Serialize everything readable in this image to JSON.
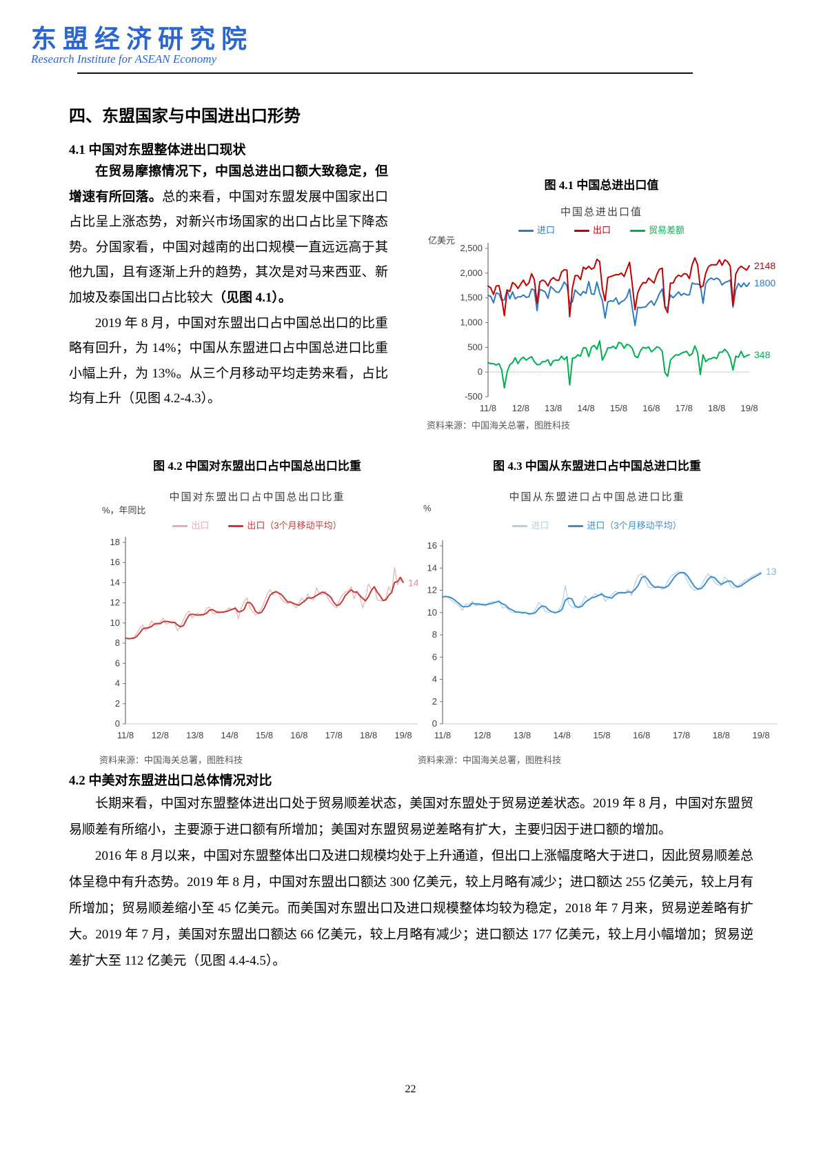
{
  "header": {
    "logo": "东盟经济研究院",
    "subtitle": "Research Institute for ASEAN Economy"
  },
  "section": {
    "h1": "四、东盟国家与中国进出口形势",
    "h2_1": "4.1 中国对东盟整体进出口现状",
    "h2_2": "4.2 中美对东盟进出口总体情况对比"
  },
  "paragraphs": {
    "p1_bold": "在贸易摩擦情况下，中国总进出口额大致稳定，但增速有所回落。",
    "p1_normal": "总的来看，中国对东盟发展中国家出口占比呈上涨态势，对新兴市场国家的出口占比呈下降态势。分国家看，中国对越南的出口规模一直远远高于其他九国，且有逐渐上升的趋势，其次是对马来西亚、新加坡及泰国出口占比较大",
    "p1_bold2": "（见图 4.1）。",
    "p2": "2019 年 8 月，中国对东盟出口占中国总出口的比重略有回升，为 14%；中国从东盟进口占中国总进口比重小幅上升，为 13%。从三个月移动平均走势来看，占比均有上升（见图 4.2-4.3）。",
    "p3": "长期来看，中国对东盟整体进出口处于贸易顺差状态，美国对东盟处于贸易逆差状态。2019 年 8 月，中国对东盟贸易顺差有所缩小，主要源于进口额有所增加；美国对东盟贸易逆差略有扩大，主要归因于进口额的增加。",
    "p4": "2016 年 8 月以来，中国对东盟整体出口及进口规模均处于上升通道，但出口上涨幅度略大于进口，因此贸易顺差总体呈稳中有升态势。2019 年 8 月，中国对东盟出口额达 300 亿美元，较上月略有减少；进口额达 255 亿美元，较上月有所增加；贸易顺差缩小至 45 亿美元。而美国对东盟出口及进口规模整体均较为稳定，2018 年 7 月来，贸易逆差略有扩大。2019 年 7 月，美国对东盟出口额达 66 亿美元，较上月略有减少；进口额达 177 亿美元，较上月小幅增加；贸易逆差扩大至 112 亿美元（见图 4.4-4.5）。"
  },
  "page_number": "22",
  "chart_data": [
    {
      "id": "fig41",
      "type": "line",
      "title": "图 4.1 中国总进出口值",
      "inner_title": "中国总进出口值",
      "ylabel": "亿美元",
      "source": "资料来源：中国海关总署，图胜科技",
      "ylim": [
        -500,
        2500
      ],
      "baseline": 0,
      "x_ticks": [
        "11/8",
        "12/8",
        "13/8",
        "14/8",
        "15/8",
        "16/8",
        "17/8",
        "18/8",
        "19/8"
      ],
      "y_ticks": [
        {
          "v": 2500,
          "label": "2,500"
        },
        {
          "v": 2000,
          "label": "2,000"
        },
        {
          "v": 1500,
          "label": "1,500"
        },
        {
          "v": 1000,
          "label": "1,000"
        },
        {
          "v": 500,
          "label": "500"
        },
        {
          "v": 0,
          "label": "0"
        },
        {
          "v": -500,
          "label": "-500"
        }
      ],
      "series": [
        {
          "name": "进口",
          "color": "#2E79C0",
          "width": 2,
          "end_label": "1800",
          "values": [
            1550,
            1530,
            1400,
            1600,
            1580,
            1450,
            1460,
            1660,
            1480,
            1620,
            1480,
            1520,
            1520,
            1560,
            1510,
            1520,
            1680,
            1660,
            1240,
            1670,
            1650,
            1620,
            1490,
            1730,
            1680,
            1620,
            1610,
            1700,
            1820,
            1750,
            1380,
            1420,
            1660,
            1600,
            1550,
            1630,
            1590,
            1830,
            1580,
            1570,
            1820,
            1600,
            1450,
            1090,
            1420,
            1440,
            1430,
            1500,
            1370,
            1420,
            1450,
            1520,
            1680,
            1300,
            940,
            1310,
            1300,
            1310,
            1320,
            1390,
            1440,
            1350,
            1460,
            1590,
            1680,
            1320,
            1290,
            1560,
            1500,
            1560,
            1620,
            1550,
            1590,
            1560,
            1560,
            1800,
            1780,
            1780,
            1760,
            1390,
            1790,
            1870,
            1900,
            1870,
            1900,
            1870,
            1760,
            1810,
            1830,
            1860,
            1310,
            1660,
            1790,
            1720,
            1800,
            1730,
            1800
          ]
        },
        {
          "name": "出口",
          "color": "#C00000",
          "width": 2,
          "end_label": "2148",
          "values": [
            1740,
            1700,
            1570,
            1740,
            1750,
            1500,
            1140,
            1660,
            1630,
            1810,
            1770,
            1690,
            1780,
            1860,
            1750,
            1800,
            1990,
            1870,
            1390,
            1820,
            1860,
            1830,
            1740,
            1860,
            1910,
            1860,
            1850,
            2020,
            2070,
            2060,
            1120,
            1700,
            1950,
            1950,
            1870,
            2120,
            2080,
            2140,
            2080,
            2110,
            2280,
            2230,
            1690,
            1440,
            1910,
            1930,
            1950,
            1970,
            1970,
            2000,
            1930,
            2080,
            2220,
            1780,
            1260,
            1600,
            1730,
            1810,
            1800,
            1900,
            1850,
            1800,
            1970,
            2080,
            2100,
            1310,
            1200,
            1800,
            1800,
            1910,
            1960,
            1930,
            1990,
            1980,
            1890,
            2170,
            2310,
            2170,
            1710,
            1740,
            2000,
            2130,
            2170,
            2170,
            2170,
            2270,
            2160,
            2270,
            2230,
            2140,
            1350,
            1980,
            2090,
            2140,
            2100,
            2060,
            2148
          ]
        },
        {
          "name": "贸易差额",
          "color": "#00B050",
          "width": 2,
          "end_label": "348",
          "values": [
            190,
            170,
            170,
            140,
            170,
            50,
            -320,
            0,
            150,
            190,
            290,
            170,
            260,
            300,
            240,
            280,
            310,
            210,
            150,
            150,
            210,
            210,
            250,
            130,
            230,
            240,
            240,
            320,
            250,
            310,
            -260,
            280,
            290,
            350,
            320,
            490,
            490,
            310,
            500,
            540,
            460,
            630,
            240,
            350,
            490,
            490,
            520,
            470,
            600,
            580,
            480,
            560,
            540,
            480,
            320,
            290,
            430,
            500,
            480,
            510,
            410,
            450,
            510,
            490,
            420,
            -10,
            -90,
            240,
            300,
            350,
            340,
            380,
            400,
            420,
            330,
            370,
            530,
            390,
            -50,
            350,
            210,
            260,
            270,
            300,
            270,
            400,
            400,
            460,
            400,
            280,
            40,
            320,
            300,
            420,
            300,
            330,
            348
          ]
        }
      ]
    },
    {
      "id": "fig42",
      "type": "line",
      "title": "图 4.2 中国对东盟出口占中国总出口比重",
      "inner_title": "中国对东盟出口占中国总出口比重",
      "ylabel": "%，年同比",
      "source": "资料来源：中国海关总署，图胜科技",
      "ylim": [
        0,
        18
      ],
      "baseline": 0,
      "base_extend": true,
      "x_ticks": [
        "11/8",
        "12/8",
        "13/8",
        "14/8",
        "15/8",
        "16/8",
        "17/8",
        "18/8",
        "19/8"
      ],
      "y_ticks": [
        {
          "v": 18,
          "label": "18"
        },
        {
          "v": 16,
          "label": "16"
        },
        {
          "v": 14,
          "label": "14"
        },
        {
          "v": 12,
          "label": "12"
        },
        {
          "v": 10,
          "label": "10"
        },
        {
          "v": 8,
          "label": "8"
        },
        {
          "v": 6,
          "label": "6"
        },
        {
          "v": 4,
          "label": "4"
        },
        {
          "v": 2,
          "label": "2"
        },
        {
          "v": 0,
          "label": "0"
        }
      ],
      "series": [
        {
          "name": "出口",
          "color": "#E5AFAF",
          "width": 1.2,
          "end_label": "14",
          "label_color": "#DE8C8C",
          "values": [
            8.5,
            8.4,
            8.5,
            8.6,
            9.0,
            9.5,
            9.8,
            9.2,
            9.6,
            10.2,
            9.9,
            9.8,
            10.1,
            10.5,
            9.9,
            10.0,
            10.2,
            10.0,
            9.2,
            9.7,
            10.3,
            10.9,
            11.2,
            10.5,
            10.8,
            11.0,
            10.7,
            10.8,
            11.4,
            11.6,
            11.0,
            10.9,
            11.2,
            11.1,
            11.0,
            11.3,
            11.5,
            11.3,
            11.6,
            10.4,
            11.5,
            12.1,
            12.5,
            11.5,
            11.1,
            10.8,
            11.0,
            11.4,
            12.1,
            12.9,
            13.3,
            12.8,
            13.2,
            12.9,
            12.3,
            12.1,
            11.9,
            12.2,
            11.8,
            11.5,
            12.0,
            12.5,
            12.1,
            12.9,
            12.4,
            12.3,
            13.5,
            12.9,
            12.8,
            13.2,
            12.4,
            12.0,
            11.7,
            11.5,
            12.3,
            12.8,
            13.1,
            13.2,
            13.6,
            12.4,
            13.2,
            12.6,
            11.5,
            12.5,
            13.9,
            13.3,
            13.6,
            12.3,
            12.2,
            12.2,
            12.5,
            13.6,
            13.0,
            15.5,
            13.8,
            14.3,
            14.0
          ]
        },
        {
          "name": "出口（3个月移动平均）",
          "color": "#C23B3B",
          "width": 2,
          "ma_of": 0
        }
      ]
    },
    {
      "id": "fig43",
      "type": "line",
      "title": "图 4.3 中国从东盟进口占中国总进口比重",
      "inner_title": "中国从东盟进口占中国总进口比重",
      "ylabel": "%",
      "source": "资料来源：中国海关总署，图胜科技",
      "ylim": [
        0,
        16
      ],
      "baseline": 0,
      "base_extend": true,
      "x_ticks": [
        "11/8",
        "12/8",
        "13/8",
        "14/8",
        "15/8",
        "16/8",
        "17/8",
        "18/8",
        "19/8"
      ],
      "y_ticks": [
        {
          "v": 16,
          "label": "16"
        },
        {
          "v": 14,
          "label": "14"
        },
        {
          "v": 12,
          "label": "12"
        },
        {
          "v": 10,
          "label": "10"
        },
        {
          "v": 8,
          "label": "8"
        },
        {
          "v": 6,
          "label": "6"
        },
        {
          "v": 4,
          "label": "4"
        },
        {
          "v": 2,
          "label": "2"
        },
        {
          "v": 0,
          "label": "0"
        }
      ],
      "series": [
        {
          "name": "进口",
          "color": "#AFCFEA",
          "width": 1.2,
          "end_label": "13",
          "label_color": "#85B6DC",
          "values": [
            11.4,
            11.5,
            11.3,
            11.0,
            10.8,
            10.6,
            10.2,
            10.8,
            10.7,
            11.0,
            10.6,
            10.7,
            10.8,
            10.6,
            10.9,
            11.0,
            10.9,
            11.1,
            10.4,
            10.5,
            10.2,
            10.0,
            10.0,
            10.1,
            9.9,
            10.0,
            9.8,
            9.9,
            10.3,
            10.9,
            10.6,
            10.1,
            10.0,
            10.1,
            9.9,
            10.2,
            10.7,
            12.4,
            10.8,
            10.5,
            10.4,
            10.5,
            10.8,
            11.5,
            11.1,
            11.4,
            11.7,
            11.5,
            11.8,
            11.0,
            11.3,
            11.6,
            11.9,
            11.8,
            11.7,
            11.8,
            12.1,
            11.5,
            12.6,
            13.3,
            13.5,
            13.0,
            12.3,
            12.2,
            12.3,
            12.4,
            12.1,
            12.2,
            12.9,
            13.3,
            13.5,
            13.7,
            13.6,
            13.4,
            12.7,
            12.2,
            12.0,
            12.1,
            12.4,
            13.0,
            13.5,
            13.2,
            12.7,
            12.5,
            12.4,
            13.2,
            12.9,
            12.3,
            12.2,
            12.4,
            12.6,
            12.9,
            13.0,
            13.2,
            13.4,
            13.5,
            13.7
          ]
        },
        {
          "name": "进口（3个月移动平均）",
          "color": "#3E8EC9",
          "width": 2,
          "ma_of": 0
        }
      ]
    }
  ]
}
